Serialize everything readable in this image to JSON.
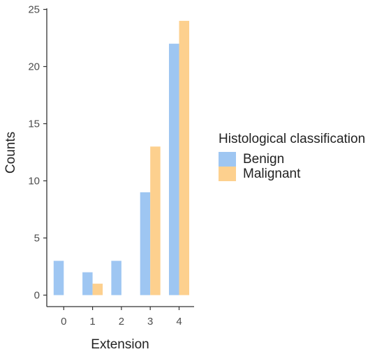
{
  "chart_data": {
    "type": "bar",
    "xlabel": "Extension",
    "ylabel": "Counts",
    "categories": [
      "0",
      "1",
      "2",
      "3",
      "4"
    ],
    "ylim": [
      0,
      25
    ],
    "yticks": [
      0,
      5,
      10,
      15,
      20,
      25
    ],
    "grid": false,
    "legend": {
      "title": "Histological classification",
      "position": "right"
    },
    "series": [
      {
        "name": "Benign",
        "color": "#9ec6f2",
        "values": [
          3,
          2,
          3,
          9,
          22
        ]
      },
      {
        "name": "Malignant",
        "color": "#fdd08e",
        "values": [
          null,
          1,
          null,
          13,
          24
        ]
      }
    ]
  }
}
